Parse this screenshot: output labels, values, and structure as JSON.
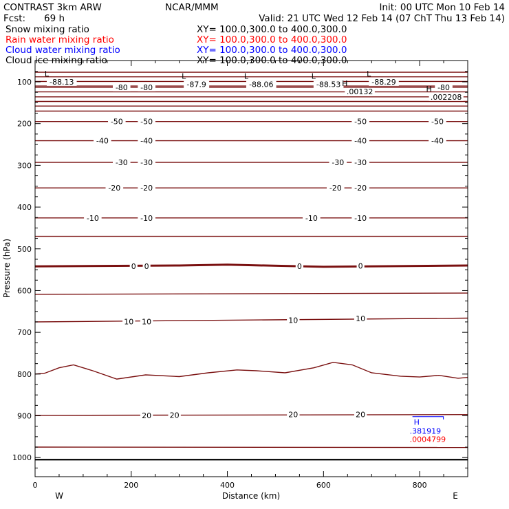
{
  "header": {
    "model": "CONTRAST  3km ARW",
    "center": "NCAR/MMM",
    "init": "Init: 00 UTC Mon 10 Feb 14",
    "fcst_label": "Fcst:",
    "fcst_value": "69 h",
    "valid": "Valid: 21 UTC Wed 12 Feb 14 (07 ChT Thu 13 Feb 14)"
  },
  "fields": [
    {
      "name": "Snow mixing ratio",
      "xy": "XY= 100.0,300.0 to 400.0,300.0",
      "color": "#000000"
    },
    {
      "name": "Rain water mixing ratio",
      "xy": "XY= 100.0,300.0 to 400.0,300.0",
      "color": "#ff0000"
    },
    {
      "name": "Cloud water mixing ratio",
      "xy": "XY= 100.0,300.0 to 400.0,300.0",
      "color": "#0000ff"
    },
    {
      "name": "Cloud ice mixing ratio",
      "xy": "XY= 100.0,300.0 to 400.0,300.0",
      "color": "#000000"
    }
  ],
  "colors": {
    "temperature_contour": "#7a1010",
    "extrema_label": "#000000"
  },
  "chart_data": {
    "type": "line",
    "title": "",
    "xlabel": "Distance (km)",
    "ylabel": "Pressure (hPa)",
    "xlim": [
      0,
      900
    ],
    "ylim": [
      1050,
      70
    ],
    "x_ticks": [
      0,
      200,
      400,
      600,
      800
    ],
    "y_ticks": [
      100,
      200,
      300,
      400,
      500,
      600,
      700,
      800,
      900,
      1000
    ],
    "x_end_labels": {
      "left": "W",
      "right": "E"
    },
    "surface_pressure": 1005,
    "contours": [
      {
        "level": null,
        "x": [
          0,
          900
        ],
        "p": [
          77,
          77
        ]
      },
      {
        "level": null,
        "x": [
          0,
          900
        ],
        "p": [
          88,
          88
        ]
      },
      {
        "level": null,
        "x": [
          0,
          900
        ],
        "p": [
          99,
          99
        ]
      },
      {
        "level": null,
        "x": [
          0,
          900
        ],
        "p": [
          110,
          110
        ]
      },
      {
        "level": -80,
        "x": [
          0,
          900
        ],
        "p": [
          113,
          113
        ]
      },
      {
        "level": null,
        "x": [
          0,
          900
        ],
        "p": [
          124,
          124
        ]
      },
      {
        "level": null,
        "x": [
          0,
          900
        ],
        "p": [
          136,
          136
        ]
      },
      {
        "level": null,
        "x": [
          0,
          900
        ],
        "p": [
          147,
          147
        ]
      },
      {
        "level": null,
        "x": [
          0,
          900
        ],
        "p": [
          158,
          158
        ]
      },
      {
        "level": null,
        "x": [
          0,
          900
        ],
        "p": [
          170,
          170
        ]
      },
      {
        "level": -50,
        "x": [
          0,
          900
        ],
        "p": [
          195,
          195
        ]
      },
      {
        "level": -40,
        "x": [
          0,
          900
        ],
        "p": [
          241,
          241
        ]
      },
      {
        "level": -30,
        "x": [
          0,
          900
        ],
        "p": [
          293,
          293
        ]
      },
      {
        "level": -20,
        "x": [
          0,
          900
        ],
        "p": [
          354,
          354
        ]
      },
      {
        "level": -10,
        "x": [
          0,
          900
        ],
        "p": [
          426,
          426
        ]
      },
      {
        "level": null,
        "x": [
          0,
          900
        ],
        "p": [
          470,
          470
        ]
      },
      {
        "level": 0,
        "x": [
          0,
          300,
          400,
          600,
          900
        ],
        "p": [
          542,
          540,
          538,
          543,
          540
        ]
      },
      {
        "level": null,
        "x": [
          0,
          900
        ],
        "p": [
          609,
          606
        ]
      },
      {
        "level": 10,
        "x": [
          0,
          900
        ],
        "p": [
          675,
          666
        ]
      },
      {
        "level": null,
        "x": [
          0,
          20,
          50,
          80,
          120,
          170,
          230,
          300,
          360,
          420,
          460,
          520,
          580,
          620,
          660,
          700,
          760,
          800,
          840,
          880,
          900
        ],
        "p": [
          800,
          798,
          785,
          778,
          792,
          812,
          802,
          806,
          797,
          790,
          792,
          797,
          785,
          772,
          778,
          797,
          805,
          807,
          803,
          810,
          808
        ]
      },
      {
        "level": 20,
        "x": [
          0,
          900
        ],
        "p": [
          899,
          897
        ]
      },
      {
        "level": null,
        "x": [
          0,
          900
        ],
        "p": [
          975,
          976
        ]
      }
    ],
    "contour_labels": [
      {
        "text": "-80",
        "x": 180,
        "p": 113
      },
      {
        "text": "-80",
        "x": 232,
        "p": 113
      },
      {
        "text": "-80",
        "x": 850,
        "p": 113
      },
      {
        "text": "-50",
        "x": 170,
        "p": 195
      },
      {
        "text": "-50",
        "x": 232,
        "p": 195
      },
      {
        "text": "-50",
        "x": 677,
        "p": 195
      },
      {
        "text": "-50",
        "x": 837,
        "p": 195
      },
      {
        "text": "-40",
        "x": 140,
        "p": 241
      },
      {
        "text": "-40",
        "x": 232,
        "p": 241
      },
      {
        "text": "-40",
        "x": 677,
        "p": 241
      },
      {
        "text": "-40",
        "x": 837,
        "p": 241
      },
      {
        "text": "-30",
        "x": 180,
        "p": 293
      },
      {
        "text": "-30",
        "x": 232,
        "p": 293
      },
      {
        "text": "-30",
        "x": 630,
        "p": 293
      },
      {
        "text": "-30",
        "x": 677,
        "p": 293
      },
      {
        "text": "-20",
        "x": 165,
        "p": 354
      },
      {
        "text": "-20",
        "x": 232,
        "p": 354
      },
      {
        "text": "-20",
        "x": 625,
        "p": 354
      },
      {
        "text": "-20",
        "x": 677,
        "p": 354
      },
      {
        "text": "-10",
        "x": 120,
        "p": 426
      },
      {
        "text": "-10",
        "x": 232,
        "p": 426
      },
      {
        "text": "-10",
        "x": 575,
        "p": 426
      },
      {
        "text": "-10",
        "x": 677,
        "p": 426
      },
      {
        "text": "0",
        "x": 205,
        "p": 542
      },
      {
        "text": "0",
        "x": 232,
        "p": 542
      },
      {
        "text": "0",
        "x": 550,
        "p": 542
      },
      {
        "text": "0",
        "x": 677,
        "p": 541
      },
      {
        "text": "10",
        "x": 195,
        "p": 674
      },
      {
        "text": "10",
        "x": 232,
        "p": 674
      },
      {
        "text": "10",
        "x": 537,
        "p": 671
      },
      {
        "text": "10",
        "x": 677,
        "p": 667
      },
      {
        "text": "20",
        "x": 232,
        "p": 899
      },
      {
        "text": "20",
        "x": 290,
        "p": 898
      },
      {
        "text": "20",
        "x": 537,
        "p": 897
      },
      {
        "text": "20",
        "x": 677,
        "p": 897
      }
    ],
    "extrema": [
      {
        "mark": "L",
        "value": "-88.13",
        "x": 30,
        "p": 90
      },
      {
        "mark": "L",
        "value": "-87.9",
        "x": 315,
        "p": 96
      },
      {
        "mark": "L",
        "value": "-88.06",
        "x": 445,
        "p": 96
      },
      {
        "mark": "L",
        "value": "-88.53",
        "x": 585,
        "p": 96
      },
      {
        "mark": "L",
        "value": "-88.29",
        "x": 700,
        "p": 90
      },
      {
        "mark": "H",
        "value": ".00132",
        "x": 650,
        "p": 113
      },
      {
        "mark": "H",
        "value": ".002208",
        "x": 825,
        "p": 126
      }
    ],
    "blue_annotation": {
      "mark": "H",
      "value": ".381919",
      "x": 785,
      "p": 925,
      "color": "#0000ff"
    },
    "red_annotation": {
      "value": ".0004799",
      "x": 785,
      "p": 946,
      "color": "#ff0000"
    }
  }
}
